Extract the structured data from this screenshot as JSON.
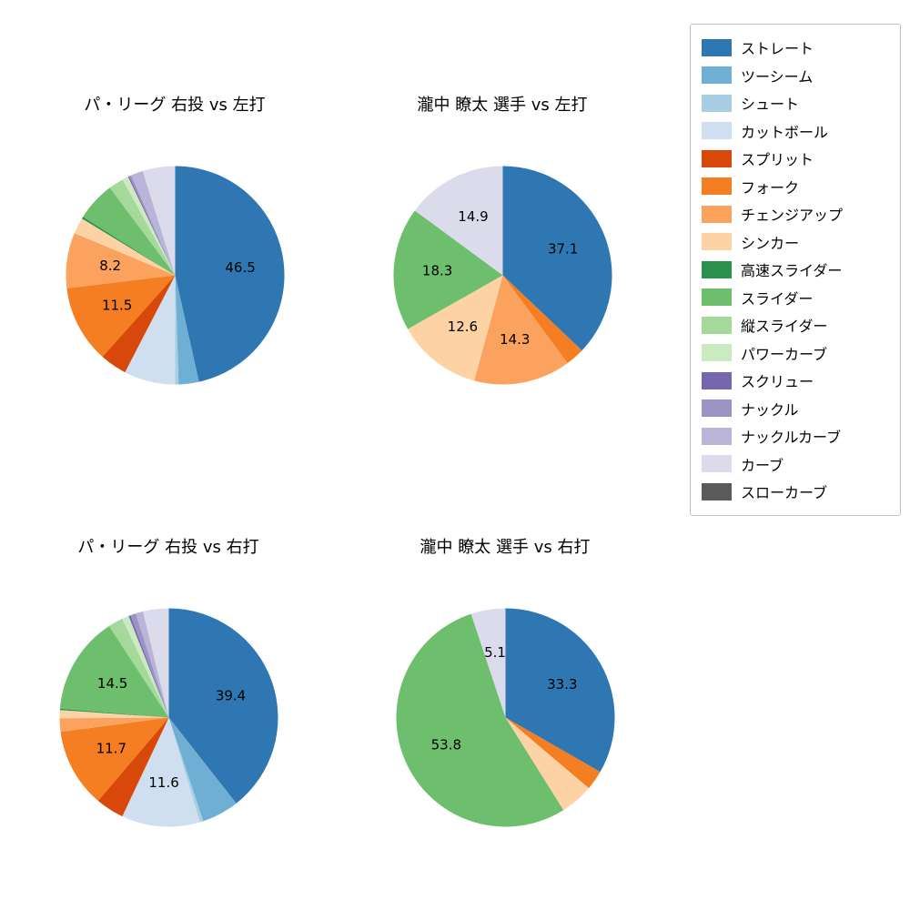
{
  "page": {
    "background": "#ffffff"
  },
  "legend": {
    "items": [
      {
        "label": "ストレート",
        "color": "#2e77b2"
      },
      {
        "label": "ツーシーム",
        "color": "#6fafd4"
      },
      {
        "label": "シュート",
        "color": "#a8cee4"
      },
      {
        "label": "カットボール",
        "color": "#cfdff0"
      },
      {
        "label": "スプリット",
        "color": "#d9480b"
      },
      {
        "label": "フォーク",
        "color": "#f47e21"
      },
      {
        "label": "チェンジアップ",
        "color": "#fba35e"
      },
      {
        "label": "シンカー",
        "color": "#fdd3a5"
      },
      {
        "label": "高速スライダー",
        "color": "#2a924a"
      },
      {
        "label": "スライダー",
        "color": "#6dbf6d"
      },
      {
        "label": "縦スライダー",
        "color": "#a5d99c"
      },
      {
        "label": "パワーカーブ",
        "color": "#cbeac2"
      },
      {
        "label": "スクリュー",
        "color": "#7566ae"
      },
      {
        "label": "ナックル",
        "color": "#9b93c4"
      },
      {
        "label": "ナックルカーブ",
        "color": "#b9b4d8"
      },
      {
        "label": "カーブ",
        "color": "#dcdbec"
      },
      {
        "label": "スローカーブ",
        "color": "#5a5a5a"
      }
    ]
  },
  "chart_data": [
    {
      "type": "pie",
      "title": "パ・リーグ 右投 vs 左打",
      "start_angle_deg": 90,
      "direction": "clockwise",
      "categories": [
        "ストレート",
        "ツーシーム",
        "シュート",
        "カットボール",
        "スプリット",
        "フォーク",
        "チェンジアップ",
        "シンカー",
        "高速スライダー",
        "スライダー",
        "縦スライダー",
        "パワーカーブ",
        "スクリュー",
        "ナックル",
        "ナックルカーブ",
        "カーブ"
      ],
      "values": [
        46.5,
        3.0,
        0.5,
        7.6,
        4.0,
        11.5,
        8.2,
        2.4,
        0.3,
        5.8,
        2.2,
        0.9,
        0.2,
        0.3,
        1.8,
        4.8
      ],
      "labels": [
        "46.5",
        "",
        "",
        "",
        "",
        "11.5",
        "8.2",
        "",
        "",
        "",
        "",
        "",
        "",
        "",
        "",
        ""
      ]
    },
    {
      "type": "pie",
      "title": "瀧中 瞭太 選手 vs 左打",
      "start_angle_deg": 90,
      "direction": "clockwise",
      "categories": [
        "ストレート",
        "フォーク",
        "チェンジアップ",
        "シンカー",
        "スライダー",
        "カーブ"
      ],
      "values": [
        37.1,
        2.8,
        14.3,
        12.6,
        18.3,
        14.9
      ],
      "labels": [
        "37.1",
        "",
        "14.3",
        "12.6",
        "18.3",
        "14.9"
      ]
    },
    {
      "type": "pie",
      "title": "パ・リーグ 右投 vs 右打",
      "start_angle_deg": 90,
      "direction": "clockwise",
      "categories": [
        "ストレート",
        "ツーシーム",
        "シュート",
        "カットボール",
        "スプリット",
        "フォーク",
        "チェンジアップ",
        "シンカー",
        "高速スライダー",
        "スライダー",
        "縦スライダー",
        "パワーカーブ",
        "スクリュー",
        "ナックル",
        "ナックルカーブ",
        "カーブ"
      ],
      "values": [
        39.4,
        5.5,
        0.5,
        11.6,
        4.2,
        11.7,
        2.0,
        1.2,
        0.2,
        14.5,
        2.2,
        1.0,
        0.3,
        0.8,
        1.1,
        3.8
      ],
      "labels": [
        "39.4",
        "",
        "",
        "11.6",
        "",
        "11.7",
        "",
        "",
        "",
        "14.5",
        "",
        "",
        "",
        "",
        "",
        ""
      ]
    },
    {
      "type": "pie",
      "title": "瀧中 瞭太 選手 vs 右打",
      "start_angle_deg": 90,
      "direction": "clockwise",
      "categories": [
        "ストレート",
        "フォーク",
        "シンカー",
        "スライダー",
        "カーブ"
      ],
      "values": [
        33.3,
        2.9,
        4.9,
        53.8,
        5.1
      ],
      "labels": [
        "33.3",
        "",
        "",
        "53.8",
        "5.1"
      ]
    }
  ]
}
